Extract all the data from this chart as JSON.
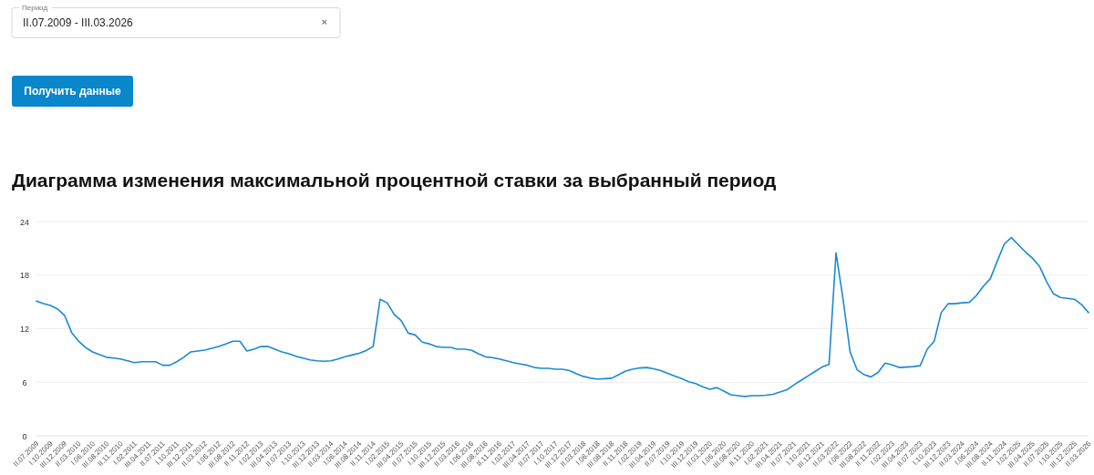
{
  "chart_data": {
    "type": "line",
    "title": "Диаграмма изменения максимальной процентной ставки за выбранный период",
    "annotations": [
      "Период",
      "II.07.2009 - III.03.2026",
      "Получить данные"
    ],
    "categories": [
      "II.07.2009",
      null,
      "I.10.2009",
      null,
      "III.12.2009",
      null,
      "II.03.2010",
      null,
      "I.06.2010",
      null,
      "III.08.2010",
      null,
      "II.11.2010",
      null,
      "I.02.2011",
      null,
      "III.04.2011",
      null,
      "II.07.2011",
      null,
      "I.10.2011",
      null,
      "III.12.2011",
      null,
      "II.03.2012",
      null,
      "I.06.2012",
      null,
      "III.08.2012",
      null,
      "II.11.2012",
      null,
      "I.02.2013",
      null,
      "III.04.2013",
      null,
      "II.07.2013",
      null,
      "I.10.2013",
      null,
      "III.12.2013",
      null,
      "II.03.2014",
      null,
      "I.06.2014",
      null,
      "III.08.2014",
      null,
      "II.11.2014",
      null,
      "I.02.2015",
      null,
      "III.04.2015",
      null,
      "II.07.2015",
      null,
      "I.10.2015",
      null,
      "III.12.2015",
      null,
      "II.03.2016",
      null,
      "I.06.2016",
      null,
      "III.08.2016",
      null,
      "II.11.2016",
      null,
      "I.02.2017",
      null,
      "III.04.2017",
      null,
      "II.07.2017",
      null,
      "I.10.2017",
      null,
      "III.12.2017",
      null,
      "II.03.2018",
      null,
      "I.06.2018",
      null,
      "III.08.2018",
      null,
      "II.11.2018",
      null,
      "I.02.2019",
      null,
      "III.04.2019",
      null,
      "II.07.2019",
      null,
      "I.10.2019",
      null,
      "III.12.2019",
      null,
      "II.03.2020",
      null,
      "I.06.2020",
      null,
      "III.08.2020",
      null,
      "II.11.2020",
      null,
      "I.02.2021",
      null,
      "III.04.2021",
      null,
      "II.07.2021",
      null,
      "I.10.2021",
      null,
      "III.12.2021",
      null,
      "II.03.2022",
      null,
      "I.06.2022",
      null,
      "III.08.2022",
      null,
      "II.11.2022",
      null,
      "I.02.2023",
      null,
      "III.04.2023",
      null,
      "II.07.2023",
      null,
      "I.10.2023",
      null,
      "III.12.2023",
      null,
      "II.03.2024",
      null,
      "I.06.2024",
      null,
      "III.08.2024",
      null,
      "II.11.2024",
      null,
      "I.02.2025",
      null,
      "III.04.2025",
      null,
      "II.07.2025",
      null,
      "I.10.2025",
      null,
      "III.12.2025",
      null,
      "II.03.2026"
    ],
    "series": [
      {
        "color": "#1a8ad0",
        "values": [
          15.1,
          14.8,
          14.6,
          14.2,
          13.5,
          11.6,
          10.6,
          9.9,
          9.4,
          9.1,
          8.8,
          8.7,
          8.6,
          8.4,
          8.2,
          8.3,
          8.3,
          8.3,
          7.9,
          7.9,
          8.3,
          8.8,
          9.4,
          9.5,
          9.6,
          9.8,
          10.0,
          10.3,
          10.6,
          10.6,
          9.5,
          9.7,
          10.0,
          10.0,
          9.7,
          9.4,
          9.2,
          8.9,
          8.7,
          8.5,
          8.4,
          8.35,
          8.4,
          8.6,
          8.85,
          9.05,
          9.25,
          9.55,
          10.0,
          15.3,
          14.9,
          13.6,
          12.9,
          11.5,
          11.3,
          10.5,
          10.3,
          10.0,
          9.9,
          9.9,
          9.7,
          9.7,
          9.6,
          9.2,
          8.85,
          8.75,
          8.6,
          8.4,
          8.2,
          8.05,
          7.9,
          7.65,
          7.55,
          7.55,
          7.45,
          7.45,
          7.3,
          6.95,
          6.65,
          6.45,
          6.35,
          6.4,
          6.45,
          6.85,
          7.25,
          7.45,
          7.6,
          7.65,
          7.5,
          7.3,
          7.0,
          6.7,
          6.4,
          6.05,
          5.85,
          5.5,
          5.2,
          5.4,
          5.0,
          4.6,
          4.5,
          4.4,
          4.5,
          4.5,
          4.55,
          4.65,
          4.9,
          5.15,
          5.7,
          6.2,
          6.7,
          7.2,
          7.7,
          8.0,
          20.5,
          15.3,
          9.4,
          7.4,
          6.85,
          6.6,
          7.1,
          8.15,
          7.95,
          7.65,
          7.7,
          7.75,
          7.85,
          9.7,
          10.6,
          13.8,
          14.8,
          14.8,
          14.9,
          14.95,
          15.7,
          16.75,
          17.6,
          19.6,
          21.5,
          22.2,
          21.4,
          20.6,
          19.9,
          19.0,
          17.3,
          15.9,
          15.5,
          15.4,
          15.3,
          14.7,
          13.8
        ]
      }
    ],
    "ylim": [
      0,
      24
    ],
    "yticks": [
      0,
      6,
      12,
      18,
      24
    ],
    "grid": "y",
    "marker": "none",
    "line_style": "solid"
  }
}
